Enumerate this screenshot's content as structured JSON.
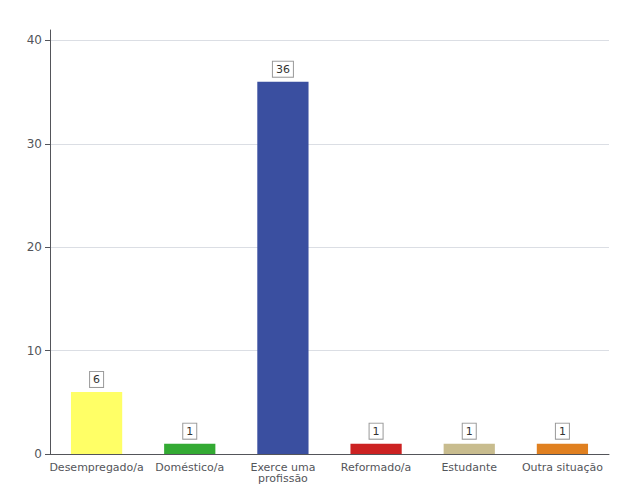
{
  "chart_data": {
    "type": "bar",
    "categories": [
      "Desempregado/a",
      "Doméstico/a",
      "Exerce uma\nprofissão",
      "Reformado/a",
      "Estudante",
      "Outra situação"
    ],
    "values": [
      6,
      1,
      36,
      1,
      1,
      1
    ],
    "colors": [
      "#ffff66",
      "#33aa33",
      "#3a4fa0",
      "#cc2222",
      "#c8bc8e",
      "#e08020"
    ],
    "ylim": [
      0,
      41
    ],
    "yticks": [
      0,
      10,
      20,
      30,
      40
    ],
    "grid": true,
    "data_labels": true
  }
}
